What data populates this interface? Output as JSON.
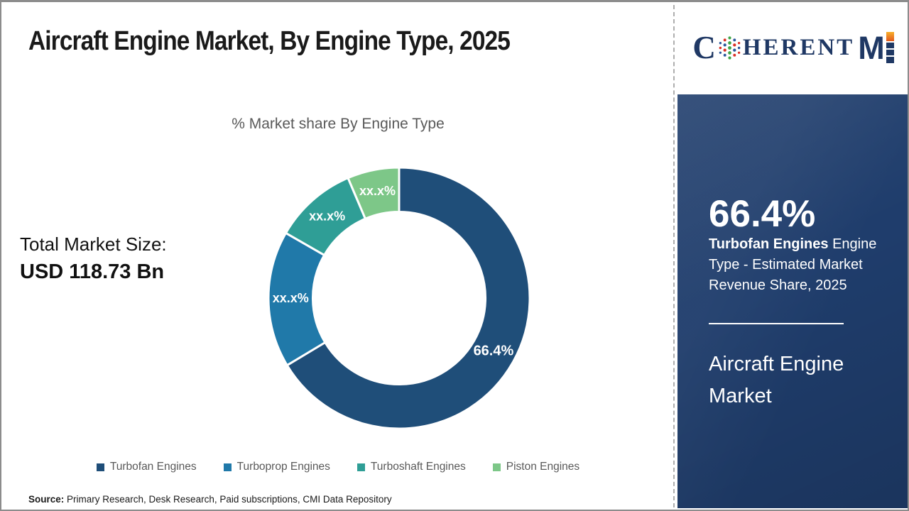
{
  "title": "Aircraft Engine Market, By Engine Type, 2025",
  "logo": {
    "text_c": "C",
    "text_rest": "HERENT",
    "text_m": "M",
    "alt": "CoherentMI",
    "navy": "#1F3864",
    "orange": "#F2A01E"
  },
  "chart_data": {
    "type": "pie",
    "subtype": "donut",
    "title": "% Market share By Engine Type",
    "categories": [
      "Turbofan Engines",
      "Turboprop Engines",
      "Turboshaft Engines",
      "Piston Engines"
    ],
    "values": [
      66.4,
      16.9,
      10.3,
      6.4
    ],
    "value_labels": [
      "66.4%",
      "xx.x%",
      "xx.x%",
      "xx.x%"
    ],
    "colors": [
      "#1F4E79",
      "#2079A9",
      "#2F9E96",
      "#7DC788"
    ],
    "start_angle_deg": 0,
    "direction": "clockwise",
    "inner_radius_ratio": 0.6605,
    "legend_position": "bottom"
  },
  "total_market": {
    "label": "Total Market Size:",
    "value": "USD 118.73 Bn"
  },
  "sidebar": {
    "stat_value": "66.4%",
    "stat_label_bold": "Turbofan Engines",
    "stat_label_rest": " Engine Type - Estimated Market Revenue Share, 2025",
    "market_name": "Aircraft Engine Market",
    "panel_color": "#1F3D6C"
  },
  "source": {
    "label": "Source:",
    "text": " Primary Research, Desk Research, Paid subscriptions, CMI Data Repository"
  }
}
